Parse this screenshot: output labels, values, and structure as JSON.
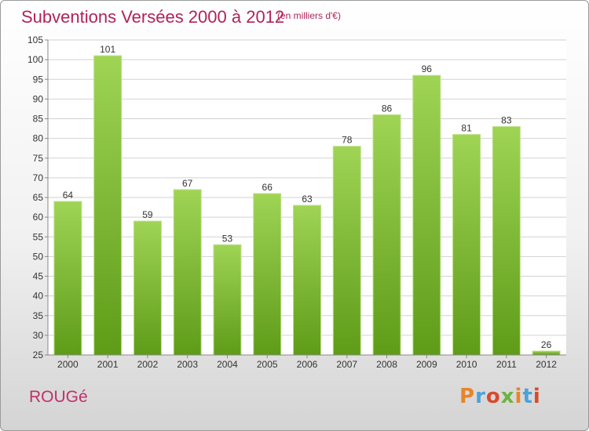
{
  "header": {
    "title": "Subventions Versées 2000 à 2012",
    "subtitle": "(en milliers d'€)"
  },
  "footer": {
    "commune": "ROUGé",
    "logo_text": "Proxiti",
    "logo_colors": [
      "#e8842a",
      "#4aa3d8",
      "#d84a2a",
      "#6db33f",
      "#e8842a",
      "#4aa3d8",
      "#d84a2a"
    ]
  },
  "chart_data": {
    "type": "bar",
    "categories": [
      "2000",
      "2001",
      "2002",
      "2003",
      "2004",
      "2005",
      "2006",
      "2007",
      "2008",
      "2009",
      "2010",
      "2011",
      "2012"
    ],
    "values": [
      64,
      101,
      59,
      67,
      53,
      66,
      63,
      78,
      86,
      96,
      81,
      83,
      26
    ],
    "data_labels": [
      "64",
      "101",
      "59",
      "67",
      "53",
      "66",
      "63",
      "78",
      "86",
      "96",
      "81",
      "83",
      "26"
    ],
    "title": "Subventions Versées 2000 à 2012",
    "xlabel": "",
    "ylabel": "",
    "ylim": [
      25,
      105
    ],
    "yticks": [
      25,
      30,
      35,
      40,
      45,
      50,
      55,
      60,
      65,
      70,
      75,
      80,
      85,
      90,
      95,
      100,
      105
    ],
    "grid": true,
    "bar_color": "#7cbf32",
    "bar_color_dark": "#5a9a14"
  }
}
